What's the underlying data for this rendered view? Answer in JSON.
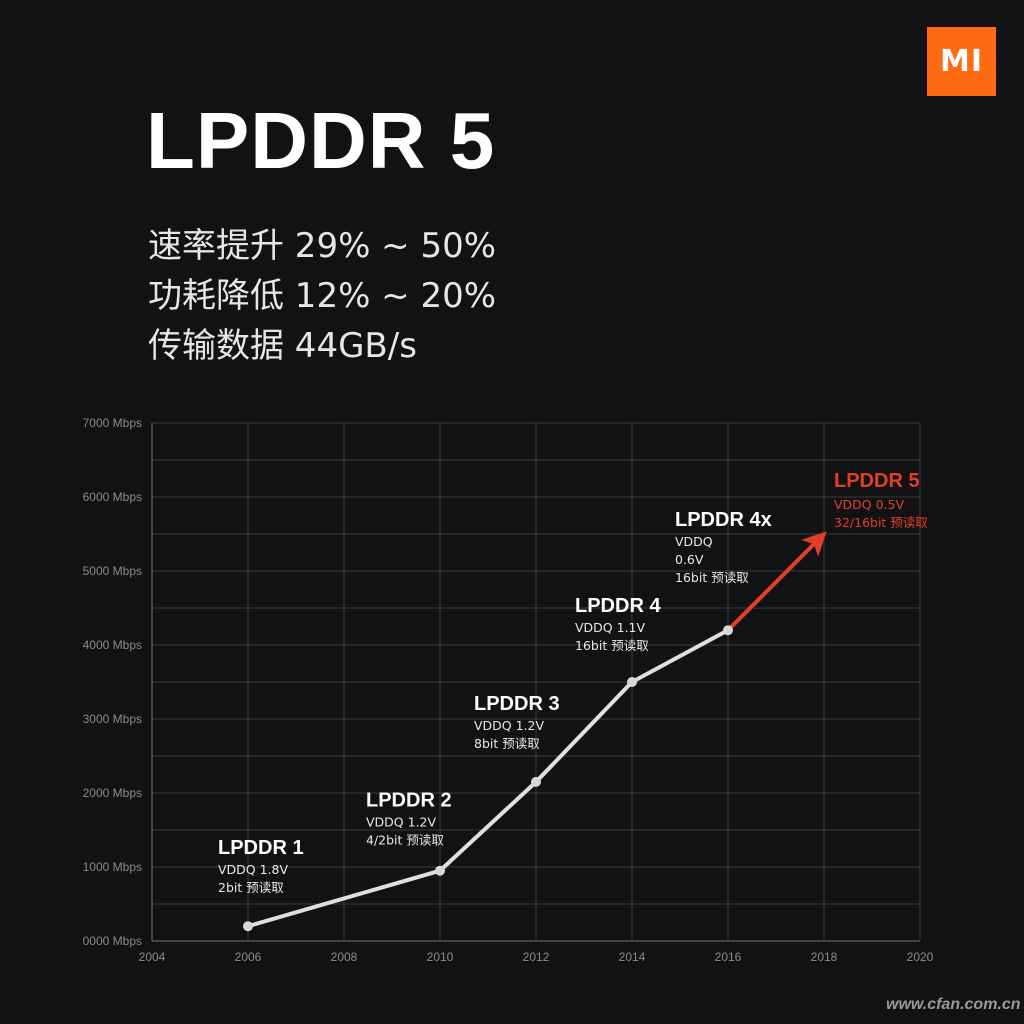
{
  "logo": {
    "text": "MI",
    "color": "#ff6a13"
  },
  "title": "LPDDR 5",
  "specs": [
    "速率提升 29% ~ 50%",
    "功耗降低 12% ~ 20%",
    "传输数据 44GB/s"
  ],
  "watermark": "www.cfan.com.cn",
  "chart_data": {
    "type": "line",
    "xlim": [
      2004,
      2020
    ],
    "ylim": [
      0,
      7000
    ],
    "x_ticks": [
      "2004",
      "2006",
      "2008",
      "2010",
      "2012",
      "2014",
      "2016",
      "2018",
      "2020"
    ],
    "y_ticks": [
      "0000 Mbps",
      "1000 Mbps",
      "2000 Mbps",
      "3000 Mbps",
      "4000 Mbps",
      "5000 Mbps",
      "6000 Mbps",
      "7000 Mbps"
    ],
    "grid": true,
    "line_color": "#e0e0e0",
    "highlight_color": "#e0402a",
    "points": [
      {
        "x": 2006,
        "y": 200,
        "name": "LPDDR 1",
        "details": [
          "VDDQ 1.8V",
          "2bit 预读取"
        ]
      },
      {
        "x": 2010,
        "y": 950,
        "name": "LPDDR 2",
        "details": [
          "VDDQ 1.2V",
          "4/2bit 预读取"
        ]
      },
      {
        "x": 2012,
        "y": 2150,
        "name": "LPDDR 3",
        "details": [
          "VDDQ 1.2V",
          "8bit 预读取"
        ]
      },
      {
        "x": 2014,
        "y": 3500,
        "name": "LPDDR 4",
        "details": [
          "VDDQ 1.1V",
          "16bit 预读取"
        ]
      },
      {
        "x": 2016,
        "y": 4200,
        "name": "LPDDR 4x",
        "details": [
          "VDDQ",
          "0.6V",
          "16bit 预读取"
        ]
      }
    ],
    "projection": {
      "x": 2018,
      "y": 5500,
      "name": "LPDDR 5",
      "details": [
        "VDDQ 0.5V",
        "32/16bit 预读取"
      ]
    }
  }
}
